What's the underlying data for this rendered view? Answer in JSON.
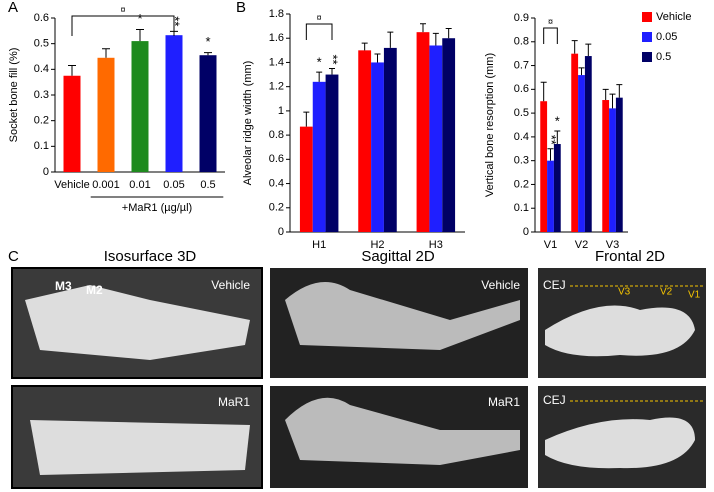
{
  "chart_data": [
    {
      "type": "bar",
      "panel": "A",
      "ylabel": "Socket bone fill (%)",
      "categories": [
        "Vehicle",
        "0.001",
        "0.01",
        "0.05",
        "0.5"
      ],
      "values": [
        0.375,
        0.445,
        0.51,
        0.533,
        0.455
      ],
      "errors": [
        0.04,
        0.035,
        0.045,
        0.015,
        0.01
      ],
      "colors": [
        "#ff0000",
        "#ff6a00",
        "#1e8a1e",
        "#1f1fff",
        "#000066"
      ],
      "significance_labels": [
        null,
        null,
        "*",
        "**",
        "*"
      ],
      "bracket_label": "¤",
      "group_label": "+MaR1 (µg/µl)",
      "ylim": [
        0,
        0.6
      ],
      "yticks": [
        0,
        0.1,
        0.2,
        0.3,
        0.4,
        0.5,
        0.6
      ]
    },
    {
      "type": "grouped-bar",
      "panel": "B",
      "ylabel": "Alveolar ridge width (mm)",
      "categories": [
        "H1",
        "H2",
        "H3"
      ],
      "series": [
        {
          "color": "#ff0000",
          "values": [
            0.87,
            1.5,
            1.65
          ],
          "errors": [
            0.12,
            0.06,
            0.07
          ],
          "significance_labels": [
            null,
            null,
            null
          ]
        },
        {
          "color": "#1f1fff",
          "values": [
            1.24,
            1.4,
            1.54
          ],
          "errors": [
            0.08,
            0.07,
            0.1
          ],
          "significance_labels": [
            "*",
            null,
            null
          ]
        },
        {
          "color": "#000066",
          "values": [
            1.3,
            1.52,
            1.6
          ],
          "errors": [
            0.05,
            0.13,
            0.08
          ],
          "significance_labels": [
            "**",
            null,
            null
          ]
        }
      ],
      "bracket_label": "¤",
      "ylim": [
        0,
        1.8
      ],
      "yticks": [
        0,
        0.2,
        0.4,
        0.6,
        0.8,
        1,
        1.2,
        1.4,
        1.6,
        1.8
      ]
    },
    {
      "type": "grouped-bar",
      "ylabel": "Vertical bone resorption (mm)",
      "categories": [
        "V1",
        "V2",
        "V3"
      ],
      "series": [
        {
          "name": "Vehicle",
          "color": "#ff0000",
          "values": [
            0.55,
            0.75,
            0.555
          ],
          "errors": [
            0.08,
            0.055,
            0.045
          ],
          "significance_labels": [
            null,
            null,
            null
          ]
        },
        {
          "name": "0.05",
          "color": "#1f1fff",
          "values": [
            0.3,
            0.66,
            0.52
          ],
          "errors": [
            0.05,
            0.03,
            0.06
          ],
          "significance_labels": [
            "**",
            null,
            null
          ]
        },
        {
          "name": "0.5",
          "color": "#000066",
          "values": [
            0.37,
            0.74,
            0.565
          ],
          "errors": [
            0.055,
            0.05,
            0.055
          ],
          "significance_labels": [
            "*",
            null,
            null
          ]
        }
      ],
      "bracket_label": "¤",
      "legend": "right",
      "ylim": [
        0,
        0.9
      ],
      "yticks": [
        0,
        0.1,
        0.2,
        0.3,
        0.4,
        0.5,
        0.6,
        0.7,
        0.8,
        0.9
      ]
    }
  ],
  "panel_c": {
    "label": "C",
    "columns": [
      "Isosurface 3D",
      "Sagittal 2D",
      "Frontal 2D"
    ],
    "rows": [
      "Vehicle",
      "MaR1"
    ],
    "teeth": [
      "M3",
      "M2"
    ],
    "cej": "CEJ",
    "measures": [
      "V3",
      "V2",
      "V1"
    ]
  }
}
